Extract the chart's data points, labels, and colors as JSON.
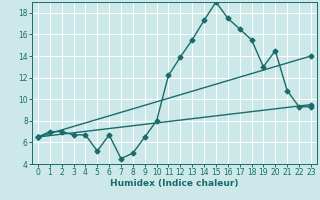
{
  "xlabel": "Humidex (Indice chaleur)",
  "bg_color": "#cce8e8",
  "grid_color": "#ffffff",
  "line_color": "#1a6b6b",
  "xlim": [
    -0.5,
    23.5
  ],
  "ylim": [
    4,
    19
  ],
  "xticks": [
    0,
    1,
    2,
    3,
    4,
    5,
    6,
    7,
    8,
    9,
    10,
    11,
    12,
    13,
    14,
    15,
    16,
    17,
    18,
    19,
    20,
    21,
    22,
    23
  ],
  "yticks": [
    4,
    6,
    8,
    10,
    12,
    14,
    16,
    18
  ],
  "line1_x": [
    0,
    1,
    2,
    3,
    4,
    5,
    6,
    7,
    8,
    9,
    10,
    11,
    12,
    13,
    14,
    15,
    16,
    17,
    18,
    19,
    20,
    21,
    22,
    23
  ],
  "line1_y": [
    6.5,
    7.0,
    7.0,
    6.7,
    6.7,
    5.2,
    6.7,
    4.5,
    5.0,
    6.5,
    8.0,
    12.2,
    13.9,
    15.5,
    17.3,
    19.0,
    17.5,
    16.5,
    15.5,
    13.0,
    14.5,
    10.8,
    9.3,
    9.3
  ],
  "line2_x": [
    0,
    23
  ],
  "line2_y": [
    6.5,
    14.0
  ],
  "line3_x": [
    0,
    23
  ],
  "line3_y": [
    6.5,
    9.5
  ],
  "line2_markers_x": [
    0,
    19,
    20,
    21,
    22,
    23
  ],
  "line2_markers_y": [
    6.5,
    13.0,
    14.5,
    10.8,
    9.3,
    9.3
  ],
  "markersize": 2.5,
  "linewidth": 1.0
}
